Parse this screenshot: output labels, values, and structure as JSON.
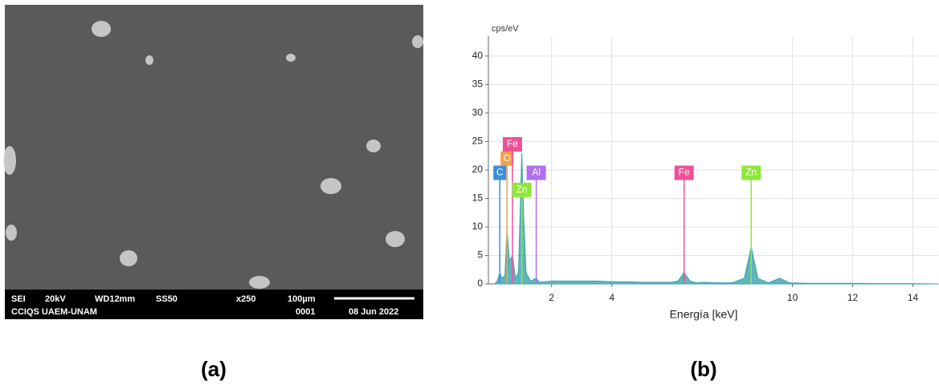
{
  "sem": {
    "mode": "SEI",
    "voltage": "20kV",
    "wd": "WD12mm",
    "spot": "SS50",
    "magnification": "x250",
    "scale": "100µm",
    "lab": "CCIQS UAEM-UNAM",
    "number": "0001",
    "date": "08 Jun 2022"
  },
  "panels": {
    "a": "(a)",
    "b": "(b)"
  },
  "chart_data": {
    "type": "area",
    "ylabel": "cps/eV",
    "xlabel": "Energía [keV]",
    "color": "#3aa3ad",
    "x": [
      0.1,
      0.2,
      0.28,
      0.35,
      0.45,
      0.52,
      0.6,
      0.7,
      0.8,
      0.9,
      0.95,
      1.01,
      1.07,
      1.15,
      1.3,
      1.49,
      1.6,
      1.8,
      2,
      2.5,
      3,
      3.5,
      4,
      4.5,
      5,
      5.5,
      6,
      6.2,
      6.4,
      6.6,
      6.8,
      7.06,
      7.5,
      8,
      8.4,
      8.63,
      8.85,
      9.2,
      9.57,
      9.9,
      10.5,
      11,
      12,
      13,
      14,
      14.8
    ],
    "values": [
      0,
      0.5,
      2,
      1,
      1.5,
      9.5,
      4,
      5,
      1,
      2,
      12,
      23,
      12,
      2,
      0.5,
      1,
      0.3,
      0.4,
      0.5,
      0.5,
      0.5,
      0.5,
      0.4,
      0.4,
      0.3,
      0.3,
      0.3,
      0.5,
      2,
      0.5,
      0.2,
      0.3,
      0.2,
      0.2,
      1,
      6.5,
      1,
      0.2,
      1,
      0.2,
      0.1,
      0.1,
      0.1,
      0.05,
      0.05,
      0
    ],
    "markers": [
      {
        "label": "C",
        "x": 0.28,
        "y": 19.5,
        "color": "#3a8fe0"
      },
      {
        "label": "O",
        "x": 0.52,
        "y": 22,
        "color": "#f5a04a"
      },
      {
        "label": "Fe",
        "x": 0.7,
        "y": 24.5,
        "color": "#f0509a"
      },
      {
        "label": "Zn",
        "x": 1.01,
        "y": 16.5,
        "color": "#8ee83a"
      },
      {
        "label": "Al",
        "x": 1.49,
        "y": 19.5,
        "color": "#b070f0"
      },
      {
        "label": "Fe",
        "x": 6.4,
        "y": 19.5,
        "color": "#f0509a"
      },
      {
        "label": "Zn",
        "x": 8.63,
        "y": 19.5,
        "color": "#8ee83a"
      }
    ],
    "xlim": [
      -0.1,
      14.84
    ],
    "ylim": [
      0,
      43.5
    ],
    "xticks": [
      2,
      4,
      10,
      12,
      14
    ],
    "yticks": [
      0,
      5,
      10,
      15,
      20,
      25,
      30,
      35,
      40
    ],
    "grid": true
  }
}
